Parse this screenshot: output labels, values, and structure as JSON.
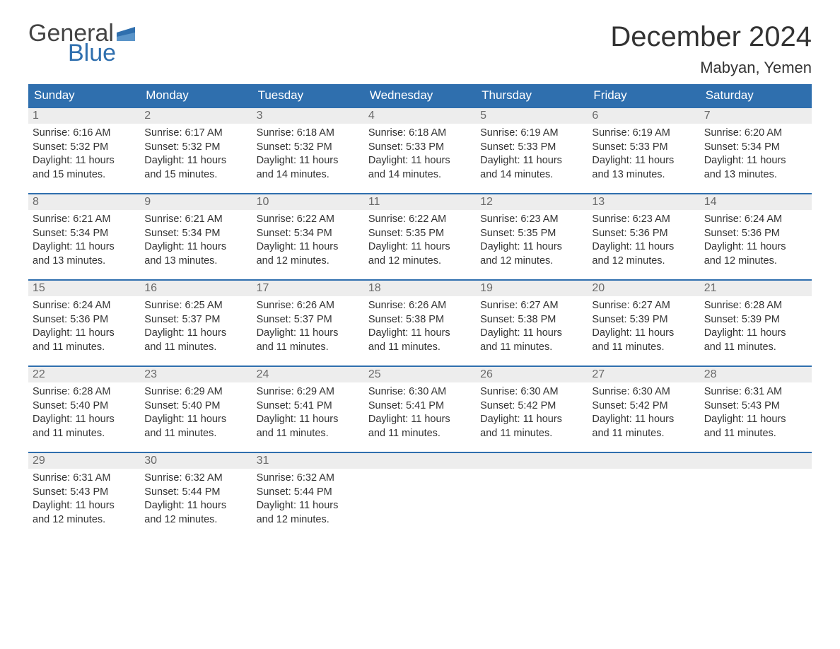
{
  "logo": {
    "word1": "General",
    "word2": "Blue",
    "flag_color": "#2f6fae",
    "text_gray": "#444444"
  },
  "title": "December 2024",
  "location": "Mabyan, Yemen",
  "colors": {
    "header_bg": "#2f6fae",
    "header_text": "#ffffff",
    "daynum_bg": "#ededed",
    "daynum_text": "#6a6a6a",
    "body_text": "#333333",
    "row_border": "#2f6fae",
    "page_bg": "#ffffff"
  },
  "fonts": {
    "title_pt": 40,
    "location_pt": 22,
    "weekday_pt": 17,
    "daynum_pt": 16,
    "body_pt": 14.5
  },
  "weekdays": [
    "Sunday",
    "Monday",
    "Tuesday",
    "Wednesday",
    "Thursday",
    "Friday",
    "Saturday"
  ],
  "labels": {
    "sunrise": "Sunrise: ",
    "sunset": "Sunset: ",
    "daylight": "Daylight: ",
    "and": "and "
  },
  "days": [
    {
      "n": 1,
      "sr": "6:16 AM",
      "ss": "5:32 PM",
      "dh": "11 hours",
      "dm": "15 minutes."
    },
    {
      "n": 2,
      "sr": "6:17 AM",
      "ss": "5:32 PM",
      "dh": "11 hours",
      "dm": "15 minutes."
    },
    {
      "n": 3,
      "sr": "6:18 AM",
      "ss": "5:32 PM",
      "dh": "11 hours",
      "dm": "14 minutes."
    },
    {
      "n": 4,
      "sr": "6:18 AM",
      "ss": "5:33 PM",
      "dh": "11 hours",
      "dm": "14 minutes."
    },
    {
      "n": 5,
      "sr": "6:19 AM",
      "ss": "5:33 PM",
      "dh": "11 hours",
      "dm": "14 minutes."
    },
    {
      "n": 6,
      "sr": "6:19 AM",
      "ss": "5:33 PM",
      "dh": "11 hours",
      "dm": "13 minutes."
    },
    {
      "n": 7,
      "sr": "6:20 AM",
      "ss": "5:34 PM",
      "dh": "11 hours",
      "dm": "13 minutes."
    },
    {
      "n": 8,
      "sr": "6:21 AM",
      "ss": "5:34 PM",
      "dh": "11 hours",
      "dm": "13 minutes."
    },
    {
      "n": 9,
      "sr": "6:21 AM",
      "ss": "5:34 PM",
      "dh": "11 hours",
      "dm": "13 minutes."
    },
    {
      "n": 10,
      "sr": "6:22 AM",
      "ss": "5:34 PM",
      "dh": "11 hours",
      "dm": "12 minutes."
    },
    {
      "n": 11,
      "sr": "6:22 AM",
      "ss": "5:35 PM",
      "dh": "11 hours",
      "dm": "12 minutes."
    },
    {
      "n": 12,
      "sr": "6:23 AM",
      "ss": "5:35 PM",
      "dh": "11 hours",
      "dm": "12 minutes."
    },
    {
      "n": 13,
      "sr": "6:23 AM",
      "ss": "5:36 PM",
      "dh": "11 hours",
      "dm": "12 minutes."
    },
    {
      "n": 14,
      "sr": "6:24 AM",
      "ss": "5:36 PM",
      "dh": "11 hours",
      "dm": "12 minutes."
    },
    {
      "n": 15,
      "sr": "6:24 AM",
      "ss": "5:36 PM",
      "dh": "11 hours",
      "dm": "11 minutes."
    },
    {
      "n": 16,
      "sr": "6:25 AM",
      "ss": "5:37 PM",
      "dh": "11 hours",
      "dm": "11 minutes."
    },
    {
      "n": 17,
      "sr": "6:26 AM",
      "ss": "5:37 PM",
      "dh": "11 hours",
      "dm": "11 minutes."
    },
    {
      "n": 18,
      "sr": "6:26 AM",
      "ss": "5:38 PM",
      "dh": "11 hours",
      "dm": "11 minutes."
    },
    {
      "n": 19,
      "sr": "6:27 AM",
      "ss": "5:38 PM",
      "dh": "11 hours",
      "dm": "11 minutes."
    },
    {
      "n": 20,
      "sr": "6:27 AM",
      "ss": "5:39 PM",
      "dh": "11 hours",
      "dm": "11 minutes."
    },
    {
      "n": 21,
      "sr": "6:28 AM",
      "ss": "5:39 PM",
      "dh": "11 hours",
      "dm": "11 minutes."
    },
    {
      "n": 22,
      "sr": "6:28 AM",
      "ss": "5:40 PM",
      "dh": "11 hours",
      "dm": "11 minutes."
    },
    {
      "n": 23,
      "sr": "6:29 AM",
      "ss": "5:40 PM",
      "dh": "11 hours",
      "dm": "11 minutes."
    },
    {
      "n": 24,
      "sr": "6:29 AM",
      "ss": "5:41 PM",
      "dh": "11 hours",
      "dm": "11 minutes."
    },
    {
      "n": 25,
      "sr": "6:30 AM",
      "ss": "5:41 PM",
      "dh": "11 hours",
      "dm": "11 minutes."
    },
    {
      "n": 26,
      "sr": "6:30 AM",
      "ss": "5:42 PM",
      "dh": "11 hours",
      "dm": "11 minutes."
    },
    {
      "n": 27,
      "sr": "6:30 AM",
      "ss": "5:42 PM",
      "dh": "11 hours",
      "dm": "11 minutes."
    },
    {
      "n": 28,
      "sr": "6:31 AM",
      "ss": "5:43 PM",
      "dh": "11 hours",
      "dm": "11 minutes."
    },
    {
      "n": 29,
      "sr": "6:31 AM",
      "ss": "5:43 PM",
      "dh": "11 hours",
      "dm": "12 minutes."
    },
    {
      "n": 30,
      "sr": "6:32 AM",
      "ss": "5:44 PM",
      "dh": "11 hours",
      "dm": "12 minutes."
    },
    {
      "n": 31,
      "sr": "6:32 AM",
      "ss": "5:44 PM",
      "dh": "11 hours",
      "dm": "12 minutes."
    }
  ]
}
